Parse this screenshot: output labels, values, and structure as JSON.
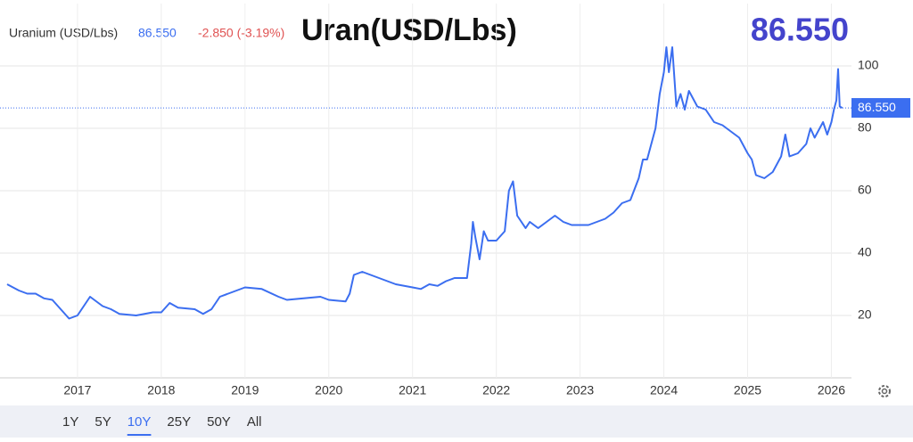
{
  "chart_data": {
    "type": "line",
    "header": {
      "instrument": "Uranium (USD/Lbs)",
      "price": "86.550",
      "change": "-2.850 (-3.19%)",
      "title": "Uran(USD/Lbs)",
      "big_price": "86.550"
    },
    "last_price_label": "86.550",
    "ranges": [
      "1Y",
      "5Y",
      "10Y",
      "25Y",
      "50Y",
      "All"
    ],
    "selected_range": 2,
    "x": [
      2016.16,
      2016.3,
      2016.4,
      2016.5,
      2016.6,
      2016.7,
      2016.8,
      2016.9,
      2017.0,
      2017.1,
      2017.15,
      2017.3,
      2017.4,
      2017.5,
      2017.7,
      2017.9,
      2018.0,
      2018.1,
      2018.2,
      2018.4,
      2018.5,
      2018.6,
      2018.7,
      2018.8,
      2018.9,
      2019.0,
      2019.2,
      2019.4,
      2019.5,
      2019.7,
      2019.9,
      2020.0,
      2020.2,
      2020.25,
      2020.3,
      2020.4,
      2020.5,
      2020.6,
      2020.7,
      2020.8,
      2021.0,
      2021.1,
      2021.2,
      2021.3,
      2021.4,
      2021.5,
      2021.6,
      2021.65,
      2021.7,
      2021.72,
      2021.75,
      2021.8,
      2021.85,
      2021.9,
      2022.0,
      2022.1,
      2022.15,
      2022.2,
      2022.25,
      2022.35,
      2022.4,
      2022.5,
      2022.6,
      2022.7,
      2022.8,
      2022.9,
      2023.0,
      2023.1,
      2023.2,
      2023.3,
      2023.4,
      2023.5,
      2023.6,
      2023.7,
      2023.75,
      2023.8,
      2023.9,
      2023.95,
      2024.0,
      2024.03,
      2024.06,
      2024.1,
      2024.15,
      2024.2,
      2024.25,
      2024.3,
      2024.4,
      2024.5,
      2024.6,
      2024.7,
      2024.8,
      2024.9,
      2025.0,
      2025.05,
      2025.1,
      2025.2,
      2025.3,
      2025.4,
      2025.45,
      2025.5,
      2025.6,
      2025.7,
      2025.75,
      2025.8,
      2025.9,
      2025.95,
      2026.0,
      2026.03,
      2026.06,
      2026.08,
      2026.1,
      2026.13
    ],
    "series": [
      {
        "name": "Uranium",
        "color": "#3b6ef0",
        "values": [
          30,
          28,
          27,
          27,
          25.5,
          25,
          22,
          19,
          20,
          24,
          26,
          23,
          22,
          20.5,
          20,
          21,
          21,
          24,
          22.5,
          22,
          20.5,
          22,
          26,
          27,
          28,
          29,
          28.5,
          26,
          25,
          25.5,
          26,
          25,
          24.5,
          27,
          33,
          34,
          33,
          32,
          31,
          30,
          29,
          28.5,
          30,
          29.5,
          31,
          32,
          32,
          32,
          43,
          50,
          45,
          38,
          47,
          44,
          44,
          47,
          60,
          63,
          52,
          48,
          50,
          48,
          50,
          52,
          50,
          49,
          49,
          49,
          50,
          51,
          53,
          56,
          57,
          64,
          70,
          70,
          80,
          91,
          98,
          106,
          98,
          106,
          87,
          91,
          86,
          92,
          87,
          86,
          82,
          81,
          79,
          77,
          72,
          70,
          65,
          64,
          66,
          71,
          78,
          71,
          72,
          75,
          80,
          77,
          82,
          78,
          82,
          86,
          89,
          99,
          87,
          86.55
        ]
      }
    ],
    "xlim": [
      2016.16,
      2026.24
    ],
    "xticks": [
      2017,
      2018,
      2019,
      2020,
      2021,
      2022,
      2023,
      2024,
      2025,
      2026
    ],
    "ylim": [
      0,
      120
    ],
    "yticks": [
      20,
      40,
      60,
      80,
      100
    ],
    "grid": true
  }
}
